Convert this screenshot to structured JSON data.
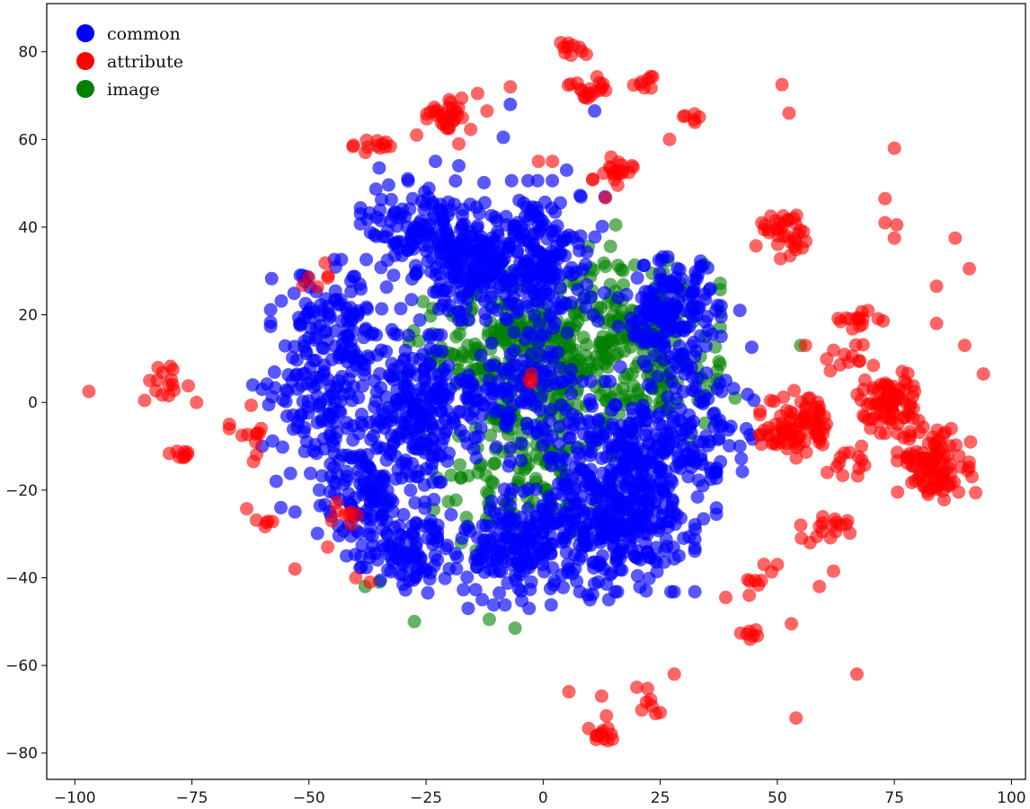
{
  "chart_data": {
    "type": "scatter",
    "title": "",
    "xlabel": "",
    "ylabel": "",
    "xlim": [
      -106,
      103
    ],
    "ylim": [
      -86,
      91
    ],
    "xticks": [
      -100,
      -75,
      -50,
      -25,
      0,
      25,
      50,
      75,
      100
    ],
    "yticks": [
      -80,
      -60,
      -40,
      -20,
      0,
      20,
      40,
      60,
      80
    ],
    "xtick_labels": [
      "−100",
      "−75",
      "−50",
      "−25",
      "0",
      "25",
      "50",
      "75",
      "100"
    ],
    "ytick_labels": [
      "−80",
      "−60",
      "−40",
      "−20",
      "0",
      "20",
      "40",
      "60",
      "80"
    ],
    "grid": false,
    "legend_position": "top-left",
    "series": [
      {
        "name": "image",
        "color": "#008000",
        "opacity": 0.6,
        "clusters": [
          {
            "cx": 3,
            "cy": 12,
            "sx": 10,
            "sy": 9,
            "n": 220
          },
          {
            "cx": -5,
            "cy": -14,
            "sx": 9,
            "sy": 9,
            "n": 150
          },
          {
            "cx": 18,
            "cy": 18,
            "sx": 9,
            "sy": 8,
            "n": 110
          },
          {
            "cx": -12,
            "cy": 12,
            "sx": 8,
            "sy": 5,
            "n": 80
          },
          {
            "cx": 25,
            "cy": 5,
            "sx": 8,
            "sy": 6,
            "n": 70
          }
        ],
        "points": [
          [
            -27.5,
            -50
          ],
          [
            -11.5,
            -49.5
          ],
          [
            -6,
            -51.5
          ],
          [
            15.5,
            40.5
          ],
          [
            55,
            13
          ],
          [
            41,
            1
          ],
          [
            -35,
            -41
          ],
          [
            -38,
            -42
          ]
        ]
      },
      {
        "name": "common",
        "color": "#0000ff",
        "opacity": 0.65,
        "clusters": [
          {
            "cx": -15,
            "cy": 32,
            "sx": 7,
            "sy": 6,
            "n": 240
          },
          {
            "cx": 0,
            "cy": 33,
            "sx": 6,
            "sy": 8,
            "n": 170
          },
          {
            "cx": -28,
            "cy": 40,
            "sx": 5,
            "sy": 5,
            "n": 90
          },
          {
            "cx": 27,
            "cy": 20,
            "sx": 5,
            "sy": 6,
            "n": 170
          },
          {
            "cx": -45,
            "cy": 15,
            "sx": 6,
            "sy": 8,
            "n": 130
          },
          {
            "cx": -25,
            "cy": 0,
            "sx": 8,
            "sy": 7,
            "n": 230
          },
          {
            "cx": -48,
            "cy": -3,
            "sx": 5,
            "sy": 6,
            "n": 80
          },
          {
            "cx": 15,
            "cy": -15,
            "sx": 10,
            "sy": 9,
            "n": 330
          },
          {
            "cx": -35,
            "cy": -20,
            "sx": 6,
            "sy": 7,
            "n": 150
          },
          {
            "cx": -5,
            "cy": -33,
            "sx": 8,
            "sy": 6,
            "n": 200
          },
          {
            "cx": 17,
            "cy": -30,
            "sx": 7,
            "sy": 6,
            "n": 150
          },
          {
            "cx": -30,
            "cy": -35,
            "sx": 5,
            "sy": 4,
            "n": 80
          },
          {
            "cx": -5,
            "cy": 5,
            "sx": 5,
            "sy": 5,
            "n": 80
          },
          {
            "cx": 33,
            "cy": -5,
            "sx": 6,
            "sy": 8,
            "n": 90
          }
        ],
        "points": [
          [
            -7,
            68
          ],
          [
            -8.5,
            60.5
          ],
          [
            -23,
            55
          ],
          [
            -18,
            54
          ],
          [
            -35,
            53.5
          ],
          [
            11,
            66.5
          ],
          [
            5,
            53
          ],
          [
            42,
            -10
          ],
          [
            45,
            0.5
          ],
          [
            42,
            21
          ],
          [
            39,
            5
          ],
          [
            -60,
            3
          ],
          [
            -62,
            4
          ],
          [
            -56,
            -24
          ],
          [
            -57,
            -18
          ],
          [
            -53,
            -25
          ],
          [
            29,
            -35
          ],
          [
            30,
            -31
          ],
          [
            -16,
            -47
          ],
          [
            -13,
            -45
          ],
          [
            -3,
            -47
          ],
          [
            10,
            -45
          ],
          [
            14,
            -45
          ],
          [
            22,
            -43
          ],
          [
            -42,
            -35
          ],
          [
            -60,
            -10
          ]
        ]
      },
      {
        "name": "attribute",
        "color": "#ff0000",
        "opacity": 0.6,
        "clusters": [
          {
            "cx": 54,
            "cy": -5,
            "sx": 3.5,
            "sy": 3.5,
            "n": 90
          },
          {
            "cx": 84,
            "cy": -14,
            "sx": 3.8,
            "sy": 3.8,
            "n": 110
          },
          {
            "cx": 74,
            "cy": 0,
            "sx": 3.2,
            "sy": 3.2,
            "n": 80
          },
          {
            "cx": 52,
            "cy": 38,
            "sx": 3,
            "sy": 2.5,
            "n": 35
          },
          {
            "cx": -21,
            "cy": 65,
            "sx": 2.5,
            "sy": 2,
            "n": 30
          },
          {
            "cx": -36,
            "cy": 59,
            "sx": 2.2,
            "sy": 1,
            "n": 12
          },
          {
            "cx": 10,
            "cy": 71,
            "sx": 2.5,
            "sy": 1.5,
            "n": 18
          },
          {
            "cx": 6,
            "cy": 81,
            "sx": 1.5,
            "sy": 1.5,
            "n": 10
          },
          {
            "cx": 22,
            "cy": 73,
            "sx": 1.5,
            "sy": 1,
            "n": 8
          },
          {
            "cx": 32,
            "cy": 65,
            "sx": 1.5,
            "sy": 1,
            "n": 6
          },
          {
            "cx": 15,
            "cy": 51,
            "sx": 2,
            "sy": 2.5,
            "n": 20
          },
          {
            "cx": 66,
            "cy": 19,
            "sx": 3,
            "sy": 1.5,
            "n": 15
          },
          {
            "cx": 65,
            "cy": 10,
            "sx": 2.5,
            "sy": 1.5,
            "n": 12
          },
          {
            "cx": 64,
            "cy": -15,
            "sx": 2.5,
            "sy": 2,
            "n": 12
          },
          {
            "cx": 60,
            "cy": -29,
            "sx": 2.5,
            "sy": 2,
            "n": 14
          },
          {
            "cx": 47,
            "cy": -40,
            "sx": 1.5,
            "sy": 1.5,
            "n": 8
          },
          {
            "cx": 44,
            "cy": -53,
            "sx": 1,
            "sy": 0.8,
            "n": 7
          },
          {
            "cx": 13,
            "cy": -76,
            "sx": 1.5,
            "sy": 1,
            "n": 12
          },
          {
            "cx": 22,
            "cy": -68,
            "sx": 2,
            "sy": 2,
            "n": 6
          },
          {
            "cx": -81,
            "cy": 4,
            "sx": 2.5,
            "sy": 2.5,
            "n": 14
          },
          {
            "cx": -77,
            "cy": -12,
            "sx": 1.5,
            "sy": 1,
            "n": 8
          },
          {
            "cx": -61,
            "cy": -7,
            "sx": 1.5,
            "sy": 3,
            "n": 10
          },
          {
            "cx": -60,
            "cy": -27,
            "sx": 1.5,
            "sy": 1.5,
            "n": 6
          },
          {
            "cx": -43,
            "cy": -25,
            "sx": 1.5,
            "sy": 1.5,
            "n": 8
          },
          {
            "cx": -48,
            "cy": 29,
            "sx": 1.5,
            "sy": 1.5,
            "n": 6
          }
        ],
        "points": [
          [
            -97,
            2.5
          ],
          [
            -84,
            5
          ],
          [
            -74,
            0
          ],
          [
            -67,
            -5
          ],
          [
            -67,
            -6
          ],
          [
            -53,
            -38
          ],
          [
            -46,
            -33
          ],
          [
            -40,
            -40
          ],
          [
            -37,
            -41
          ],
          [
            -2.5,
            6.5
          ],
          [
            -2.5,
            4.5
          ],
          [
            -3,
            5
          ],
          [
            -1,
            55
          ],
          [
            2,
            55
          ],
          [
            -14,
            70.5
          ],
          [
            -12,
            66.5
          ],
          [
            -7,
            72
          ],
          [
            -27,
            61
          ],
          [
            -18,
            59
          ],
          [
            27,
            60
          ],
          [
            75,
            58
          ],
          [
            73,
            46.5
          ],
          [
            73,
            41
          ],
          [
            75.5,
            40.5
          ],
          [
            75,
            37.5
          ],
          [
            88,
            37.5
          ],
          [
            91,
            30.5
          ],
          [
            84,
            26.5
          ],
          [
            84,
            18
          ],
          [
            90,
            13
          ],
          [
            94,
            6.5
          ],
          [
            51,
            72.5
          ],
          [
            52.5,
            66
          ],
          [
            56,
            13
          ],
          [
            53,
            -50.5
          ],
          [
            54,
            -72
          ],
          [
            67,
            -62
          ],
          [
            44,
            -44
          ],
          [
            39,
            -44.5
          ],
          [
            28,
            -62
          ],
          [
            24,
            -71
          ],
          [
            5.5,
            -66
          ],
          [
            12.5,
            -67
          ],
          [
            13.5,
            -71.5
          ],
          [
            20,
            -65
          ],
          [
            68,
            -10
          ],
          [
            72,
            -7
          ],
          [
            55,
            -28
          ],
          [
            57,
            -32
          ],
          [
            59,
            -42
          ],
          [
            62,
            -38.5
          ],
          [
            65,
            -27
          ],
          [
            77,
            -8
          ]
        ]
      }
    ]
  },
  "legend": {
    "items": [
      {
        "label": "common",
        "color": "#0000ff"
      },
      {
        "label": "attribute",
        "color": "#ff0000"
      },
      {
        "label": "image",
        "color": "#008000"
      }
    ]
  }
}
